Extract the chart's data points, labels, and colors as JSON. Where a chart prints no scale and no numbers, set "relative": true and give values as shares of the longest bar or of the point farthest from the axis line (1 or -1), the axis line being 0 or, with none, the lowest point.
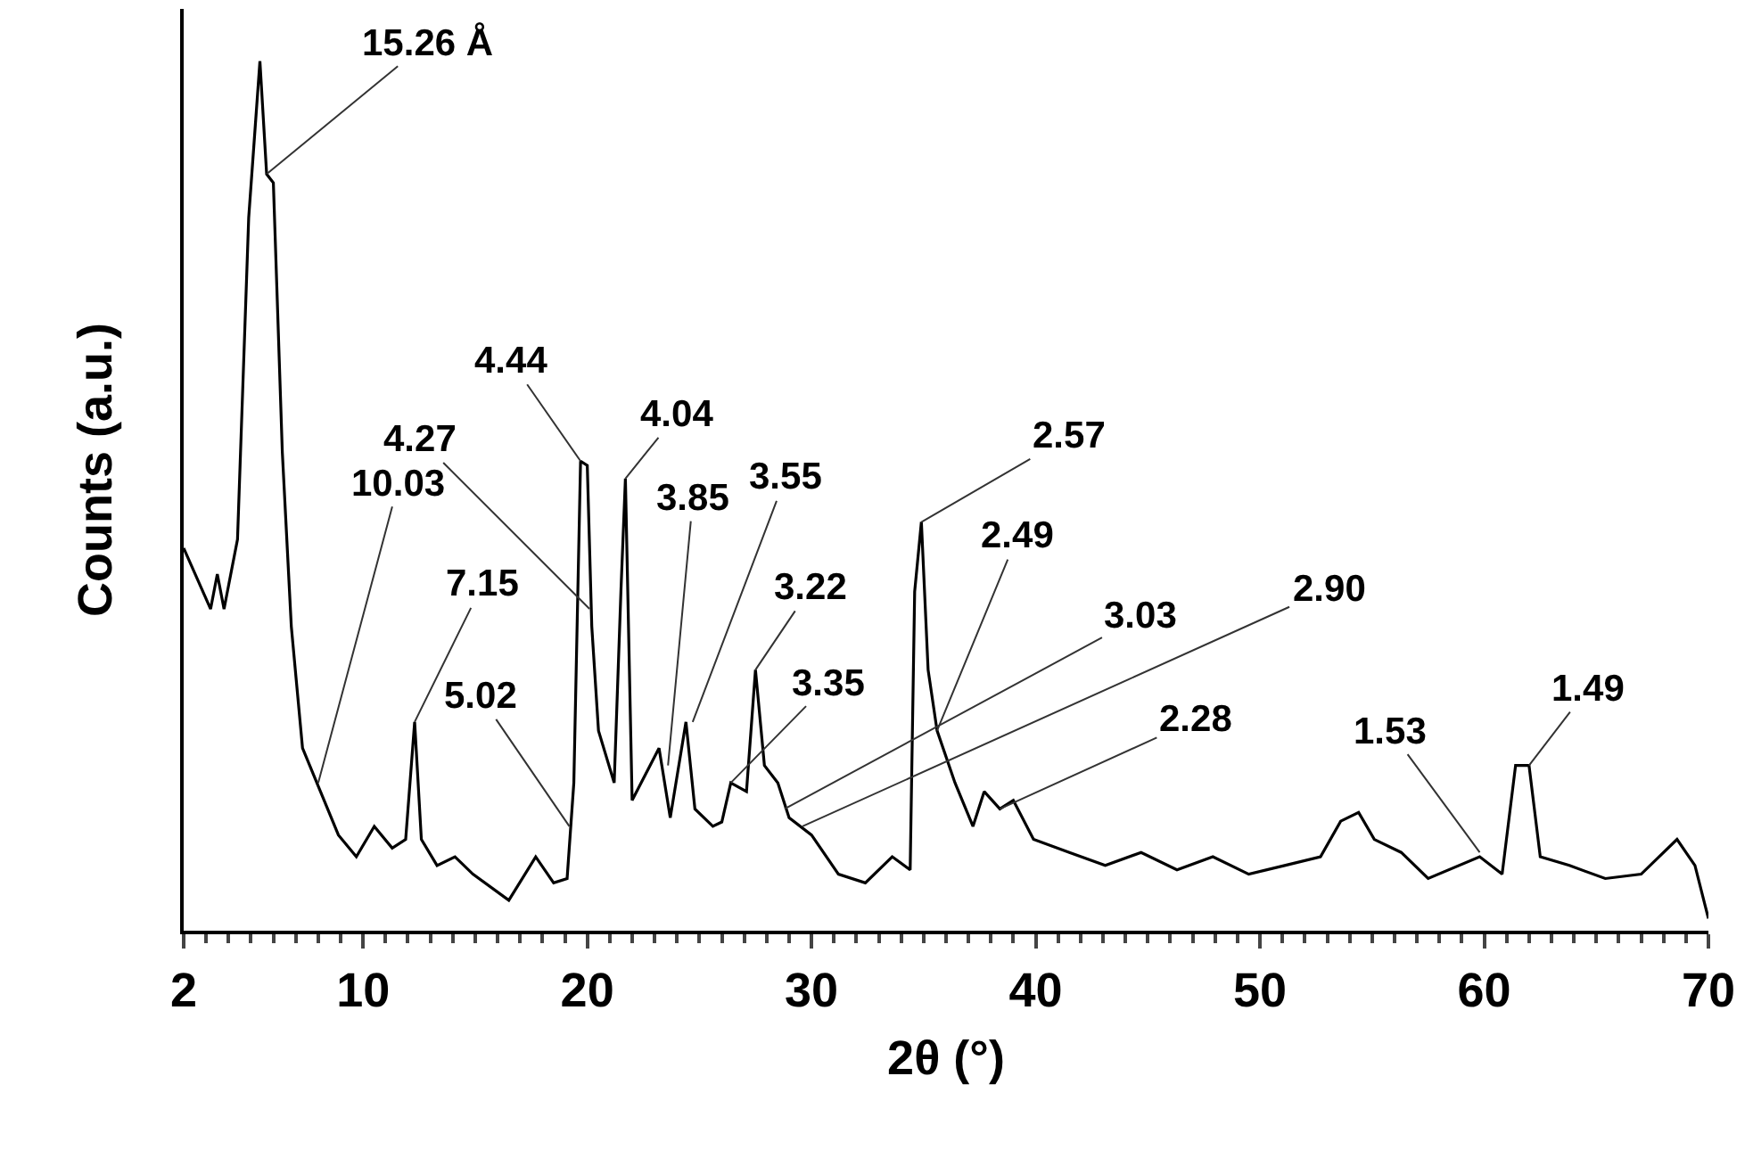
{
  "chart_data": {
    "type": "line",
    "relative": true,
    "xlabel": "2θ (°)",
    "ylabel": "Counts (a.u.)",
    "color": "#000000",
    "grid": false,
    "legend": false,
    "marker": "none",
    "line_style": "solid",
    "xlim": [
      2,
      70
    ],
    "xticks": [
      2,
      10,
      20,
      30,
      40,
      50,
      60,
      70
    ],
    "x": [
      2.0,
      3.2,
      3.5,
      3.8,
      4.4,
      4.9,
      5.4,
      5.7,
      6.0,
      6.4,
      6.8,
      7.3,
      8.1,
      8.9,
      9.7,
      10.5,
      11.3,
      11.9,
      12.3,
      12.6,
      13.3,
      14.1,
      14.9,
      16.5,
      17.7,
      18.5,
      19.1,
      19.4,
      19.7,
      20.0,
      20.2,
      20.5,
      21.2,
      21.5,
      21.7,
      22.0,
      22.6,
      23.2,
      23.7,
      24.4,
      24.8,
      25.6,
      26.0,
      26.4,
      27.1,
      27.5,
      27.9,
      28.5,
      29.0,
      30.0,
      31.2,
      32.4,
      33.6,
      34.4,
      34.6,
      34.9,
      35.2,
      35.6,
      36.4,
      37.2,
      37.7,
      38.4,
      39.0,
      39.9,
      41.5,
      43.1,
      44.7,
      46.3,
      47.9,
      49.5,
      51.1,
      52.7,
      53.6,
      54.4,
      55.1,
      56.3,
      57.5,
      59.8,
      60.8,
      61.4,
      62.0,
      62.5,
      63.8,
      65.4,
      67.0,
      68.6,
      69.4,
      70.0
    ],
    "values": [
      0.44,
      0.37,
      0.41,
      0.37,
      0.45,
      0.82,
      1.0,
      0.87,
      0.86,
      0.55,
      0.35,
      0.21,
      0.16,
      0.11,
      0.085,
      0.12,
      0.095,
      0.105,
      0.24,
      0.105,
      0.075,
      0.085,
      0.065,
      0.035,
      0.085,
      0.055,
      0.06,
      0.17,
      0.54,
      0.535,
      0.35,
      0.23,
      0.17,
      0.39,
      0.52,
      0.15,
      0.18,
      0.21,
      0.13,
      0.24,
      0.14,
      0.12,
      0.125,
      0.17,
      0.16,
      0.3,
      0.19,
      0.17,
      0.13,
      0.11,
      0.065,
      0.055,
      0.085,
      0.07,
      0.39,
      0.47,
      0.3,
      0.23,
      0.17,
      0.12,
      0.16,
      0.14,
      0.15,
      0.105,
      0.09,
      0.075,
      0.09,
      0.07,
      0.085,
      0.065,
      0.075,
      0.085,
      0.126,
      0.136,
      0.105,
      0.09,
      0.06,
      0.085,
      0.065,
      0.19,
      0.19,
      0.085,
      0.075,
      0.06,
      0.065,
      0.105,
      0.075,
      0.014
    ],
    "annotations": [
      {
        "text": "15.26 Å",
        "x": 5.7,
        "y": 0.87
      },
      {
        "text": "4.44",
        "x": 19.7,
        "y": 0.54
      },
      {
        "text": "4.27",
        "x": 20.1,
        "y": 0.37
      },
      {
        "text": "4.04",
        "x": 21.7,
        "y": 0.52
      },
      {
        "text": "3.85",
        "x": 23.6,
        "y": 0.19
      },
      {
        "text": "3.55",
        "x": 24.7,
        "y": 0.24
      },
      {
        "text": "10.03",
        "x": 8.0,
        "y": 0.17
      },
      {
        "text": "7.15",
        "x": 12.3,
        "y": 0.24
      },
      {
        "text": "5.02",
        "x": 19.2,
        "y": 0.12
      },
      {
        "text": "3.22",
        "x": 27.5,
        "y": 0.3
      },
      {
        "text": "3.35",
        "x": 26.4,
        "y": 0.17
      },
      {
        "text": "2.57",
        "x": 34.9,
        "y": 0.47
      },
      {
        "text": "2.49",
        "x": 35.6,
        "y": 0.23
      },
      {
        "text": "3.03",
        "x": 28.8,
        "y": 0.14
      },
      {
        "text": "2.90",
        "x": 29.6,
        "y": 0.12
      },
      {
        "text": "2.28",
        "x": 38.4,
        "y": 0.14
      },
      {
        "text": "1.53",
        "x": 59.8,
        "y": 0.09
      },
      {
        "text": "1.49",
        "x": 62.0,
        "y": 0.19
      }
    ]
  }
}
